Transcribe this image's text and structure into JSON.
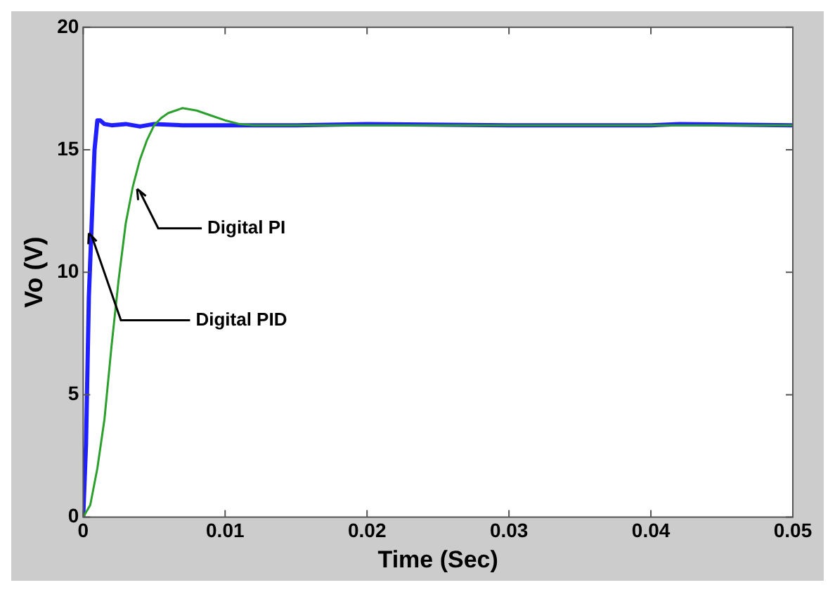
{
  "chart_data": {
    "type": "line",
    "xlabel": "Time (Sec)",
    "ylabel": "Vo (V)",
    "xlim": [
      0,
      0.05
    ],
    "xticks": [
      0,
      0.01,
      0.02,
      0.03,
      0.04,
      0.05
    ],
    "ylim": [
      0,
      20
    ],
    "yticks": [
      0,
      5,
      10,
      15,
      20
    ],
    "grid": false,
    "legend": false,
    "marker": "none",
    "line_style": "solid",
    "series": [
      {
        "color": "#1f1fff",
        "x": [
          0,
          0.0002,
          0.0004,
          0.0006,
          0.0008,
          0.001,
          0.0012,
          0.0015,
          0.002,
          0.003,
          0.004,
          0.005,
          0.007,
          0.01,
          0.015,
          0.02,
          0.03,
          0.04,
          0.042,
          0.05
        ],
        "values": [
          0,
          3,
          9,
          12,
          15,
          16.2,
          16.2,
          16.05,
          16,
          16.05,
          15.95,
          16.05,
          16,
          16,
          16,
          16.05,
          16,
          16,
          16.05,
          16
        ]
      },
      {
        "color": "#2ca02c",
        "x": [
          0,
          0.0005,
          0.001,
          0.0015,
          0.002,
          0.0025,
          0.003,
          0.0035,
          0.004,
          0.0045,
          0.005,
          0.0055,
          0.006,
          0.007,
          0.008,
          0.009,
          0.01,
          0.011,
          0.012,
          0.02,
          0.03,
          0.04,
          0.05
        ],
        "values": [
          0,
          0.5,
          2,
          4,
          7,
          9.7,
          12,
          13.5,
          14.6,
          15.4,
          16,
          16.3,
          16.5,
          16.7,
          16.6,
          16.4,
          16.2,
          16.05,
          16,
          16,
          16,
          16,
          16
        ]
      }
    ],
    "annotations": [
      {
        "text": "Digital PI",
        "x": 0.0038,
        "y": 13.4
      },
      {
        "text": "Digital PID",
        "x": 0.0004,
        "y": 11.6
      }
    ]
  }
}
